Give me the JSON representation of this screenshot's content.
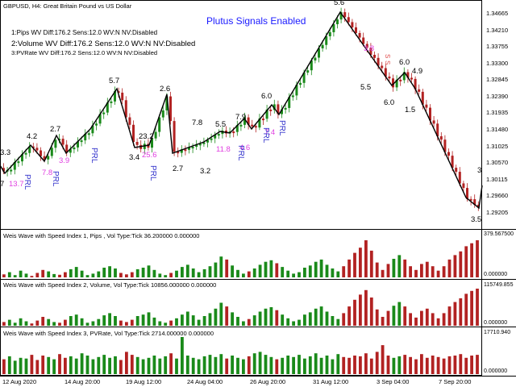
{
  "header": {
    "symbol_title": "GBPUSD, H4:  Great Britain Pound vs US Dollar",
    "signals_banner": "Plutus Signals Enabled",
    "info_lines": [
      "1:Pips    WV Diff:176.2 Sens:12.0 WV:N NV:Disabled",
      "2:Volume WV Diff:176.2 Sens:12.0 WV:N NV:Disabled",
      "3:PVRate WV Diff:176.2 Sens:12.0 WV:N NV:Disabled"
    ]
  },
  "price_axis": {
    "labels": [
      "1.34665",
      "1.34210",
      "1.33755",
      "1.33300",
      "1.32845",
      "1.32390",
      "1.31935",
      "1.31480",
      "1.31025",
      "1.30570",
      "1.30115",
      "1.29660",
      "1.29205"
    ]
  },
  "time_axis": {
    "labels": [
      "12 Aug 2020",
      "14 Aug 20:00",
      "19 Aug 12:00",
      "24 Aug 04:00",
      "26 Aug 20:00",
      "31 Aug 12:00",
      "3 Sep 04:00",
      "7 Sep 20:00"
    ]
  },
  "wave_labels_black": [
    "3.3",
    "4.2",
    "2.7",
    "5.7",
    "2.6",
    "3.4",
    "23.2",
    "2.7",
    "7.8",
    "3.2",
    "5.5",
    "7.9",
    "6.0",
    "5.6",
    "5.5",
    "6.0",
    "4.9",
    "6.0",
    "1.5",
    "3",
    "3.5",
    "7"
  ],
  "wave_labels_magenta": [
    "13.7",
    "7.8",
    "3.9",
    "25.6",
    "11.8",
    "4.6",
    "7.4",
    "3.8"
  ],
  "prl_labels": [
    "PRL",
    "PRL",
    "PRL",
    "PRL",
    "PRL",
    "PRL",
    "PRL"
  ],
  "signal_mark": "S",
  "panels": [
    {
      "title": "Weis Wave with Speed Index 1, Pips    , Vol Type:Tick 36.200000 0.000000",
      "axis_top": "379.567500",
      "axis_bottom": "0.000000",
      "bars": [
        8,
        14,
        6,
        18,
        10,
        4,
        12,
        20,
        16,
        9,
        7,
        14,
        22,
        28,
        18,
        6,
        10,
        16,
        26,
        30,
        24,
        12,
        8,
        14,
        22,
        26,
        32,
        20,
        10,
        6,
        12,
        18,
        28,
        34,
        24,
        14,
        22,
        30,
        40,
        56,
        48,
        32,
        20,
        10,
        16,
        24,
        34,
        42,
        46,
        38,
        28,
        18,
        10,
        14,
        26,
        32,
        42,
        48,
        34,
        24,
        16,
        30,
        48,
        66,
        80,
        100,
        72,
        40,
        20,
        36,
        50,
        60,
        48,
        30,
        20,
        36,
        42,
        30,
        18,
        30,
        48,
        60,
        70,
        84,
        92,
        100
      ]
    },
    {
      "title": "Weis Wave with Speed Index 2, Volume, Vol Type:Tick 10856.000000 0.000000",
      "axis_top": "115749.855",
      "axis_bottom": "0.000000",
      "bars": [
        10,
        16,
        8,
        20,
        12,
        6,
        14,
        24,
        18,
        10,
        8,
        16,
        26,
        30,
        20,
        8,
        12,
        18,
        28,
        34,
        26,
        14,
        10,
        16,
        26,
        30,
        36,
        22,
        12,
        8,
        14,
        20,
        30,
        38,
        28,
        16,
        26,
        34,
        46,
        62,
        52,
        36,
        24,
        12,
        18,
        28,
        38,
        46,
        50,
        42,
        30,
        20,
        12,
        16,
        30,
        36,
        46,
        52,
        38,
        26,
        18,
        34,
        52,
        70,
        84,
        96,
        76,
        44,
        24,
        40,
        54,
        64,
        52,
        34,
        22,
        40,
        46,
        34,
        20,
        34,
        52,
        64,
        74,
        86,
        94,
        100
      ]
    },
    {
      "title": "Weis Wave with Speed Index 3, PVRate, Vol Type:Tick 2714.000000 0.000000",
      "axis_top": "17710.940",
      "axis_bottom": "0.000000",
      "bars": [
        40,
        48,
        36,
        44,
        42,
        52,
        38,
        50,
        46,
        40,
        54,
        44,
        48,
        42,
        56,
        50,
        40,
        46,
        52,
        44,
        48,
        38,
        60,
        52,
        46,
        40,
        44,
        50,
        42,
        48,
        56,
        42,
        100,
        50,
        44,
        40,
        48,
        52,
        46,
        54,
        42,
        50,
        44,
        40,
        48,
        56,
        60,
        52,
        46,
        40,
        44,
        50,
        46,
        52,
        42,
        48,
        56,
        44,
        50,
        40,
        54,
        46,
        44,
        50,
        48,
        56,
        42,
        60,
        78,
        50,
        44,
        48,
        52,
        46,
        40,
        54,
        44,
        50,
        46,
        42,
        48,
        50,
        54,
        44,
        50,
        52
      ]
    }
  ],
  "colors": {
    "bull": "#1a8a1a",
    "bear": "#b22222",
    "zigzag": "#000000",
    "magenta": "#e040e0",
    "prl": "#3333cc",
    "banner": "#1a1aff"
  }
}
